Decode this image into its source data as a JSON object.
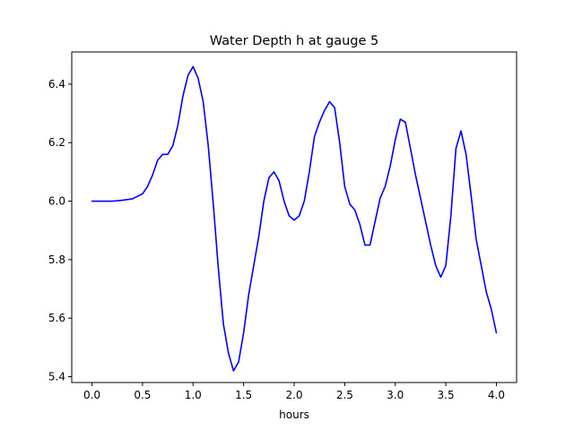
{
  "chart_data": {
    "type": "line",
    "title": "Water Depth h at gauge 5",
    "xlabel": "hours",
    "ylabel": "",
    "xlim": [
      -0.2,
      4.2
    ],
    "ylim": [
      5.38,
      6.51
    ],
    "x_ticks": [
      0.0,
      0.5,
      1.0,
      1.5,
      2.0,
      2.5,
      3.0,
      3.5,
      4.0
    ],
    "x_tick_labels": [
      "0.0",
      "0.5",
      "1.0",
      "1.5",
      "2.0",
      "2.5",
      "3.0",
      "3.5",
      "4.0"
    ],
    "y_ticks": [
      5.4,
      5.6,
      5.8,
      6.0,
      6.2,
      6.4
    ],
    "y_tick_labels": [
      "5.4",
      "5.6",
      "5.8",
      "6.0",
      "6.2",
      "6.4"
    ],
    "grid": false,
    "series": [
      {
        "color": "#0000ff",
        "x": [
          0.0,
          0.1,
          0.2,
          0.3,
          0.4,
          0.5,
          0.55,
          0.6,
          0.65,
          0.7,
          0.75,
          0.8,
          0.85,
          0.9,
          0.95,
          1.0,
          1.05,
          1.1,
          1.15,
          1.2,
          1.25,
          1.3,
          1.35,
          1.4,
          1.45,
          1.5,
          1.55,
          1.6,
          1.65,
          1.7,
          1.75,
          1.8,
          1.85,
          1.9,
          1.95,
          2.0,
          2.05,
          2.1,
          2.15,
          2.2,
          2.25,
          2.3,
          2.35,
          2.4,
          2.45,
          2.5,
          2.55,
          2.6,
          2.65,
          2.7,
          2.75,
          2.8,
          2.85,
          2.9,
          2.95,
          3.0,
          3.05,
          3.1,
          3.15,
          3.2,
          3.25,
          3.3,
          3.35,
          3.4,
          3.45,
          3.5,
          3.55,
          3.6,
          3.65,
          3.7,
          3.75,
          3.8,
          3.85,
          3.9,
          3.95,
          4.0
        ],
        "y": [
          6.0,
          6.0,
          6.0,
          6.003,
          6.008,
          6.025,
          6.05,
          6.09,
          6.14,
          6.16,
          6.16,
          6.19,
          6.26,
          6.36,
          6.43,
          6.46,
          6.42,
          6.34,
          6.19,
          5.99,
          5.77,
          5.58,
          5.48,
          5.42,
          5.45,
          5.55,
          5.68,
          5.78,
          5.88,
          6.0,
          6.08,
          6.1,
          6.07,
          6.0,
          5.95,
          5.935,
          5.95,
          6.0,
          6.1,
          6.22,
          6.27,
          6.31,
          6.34,
          6.32,
          6.2,
          6.05,
          5.99,
          5.97,
          5.92,
          5.85,
          5.85,
          5.93,
          6.01,
          6.05,
          6.12,
          6.21,
          6.28,
          6.27,
          6.18,
          6.09,
          6.01,
          5.93,
          5.85,
          5.78,
          5.74,
          5.78,
          5.95,
          6.18,
          6.24,
          6.16,
          6.02,
          5.87,
          5.78,
          5.69,
          5.63,
          5.55
        ]
      }
    ]
  }
}
